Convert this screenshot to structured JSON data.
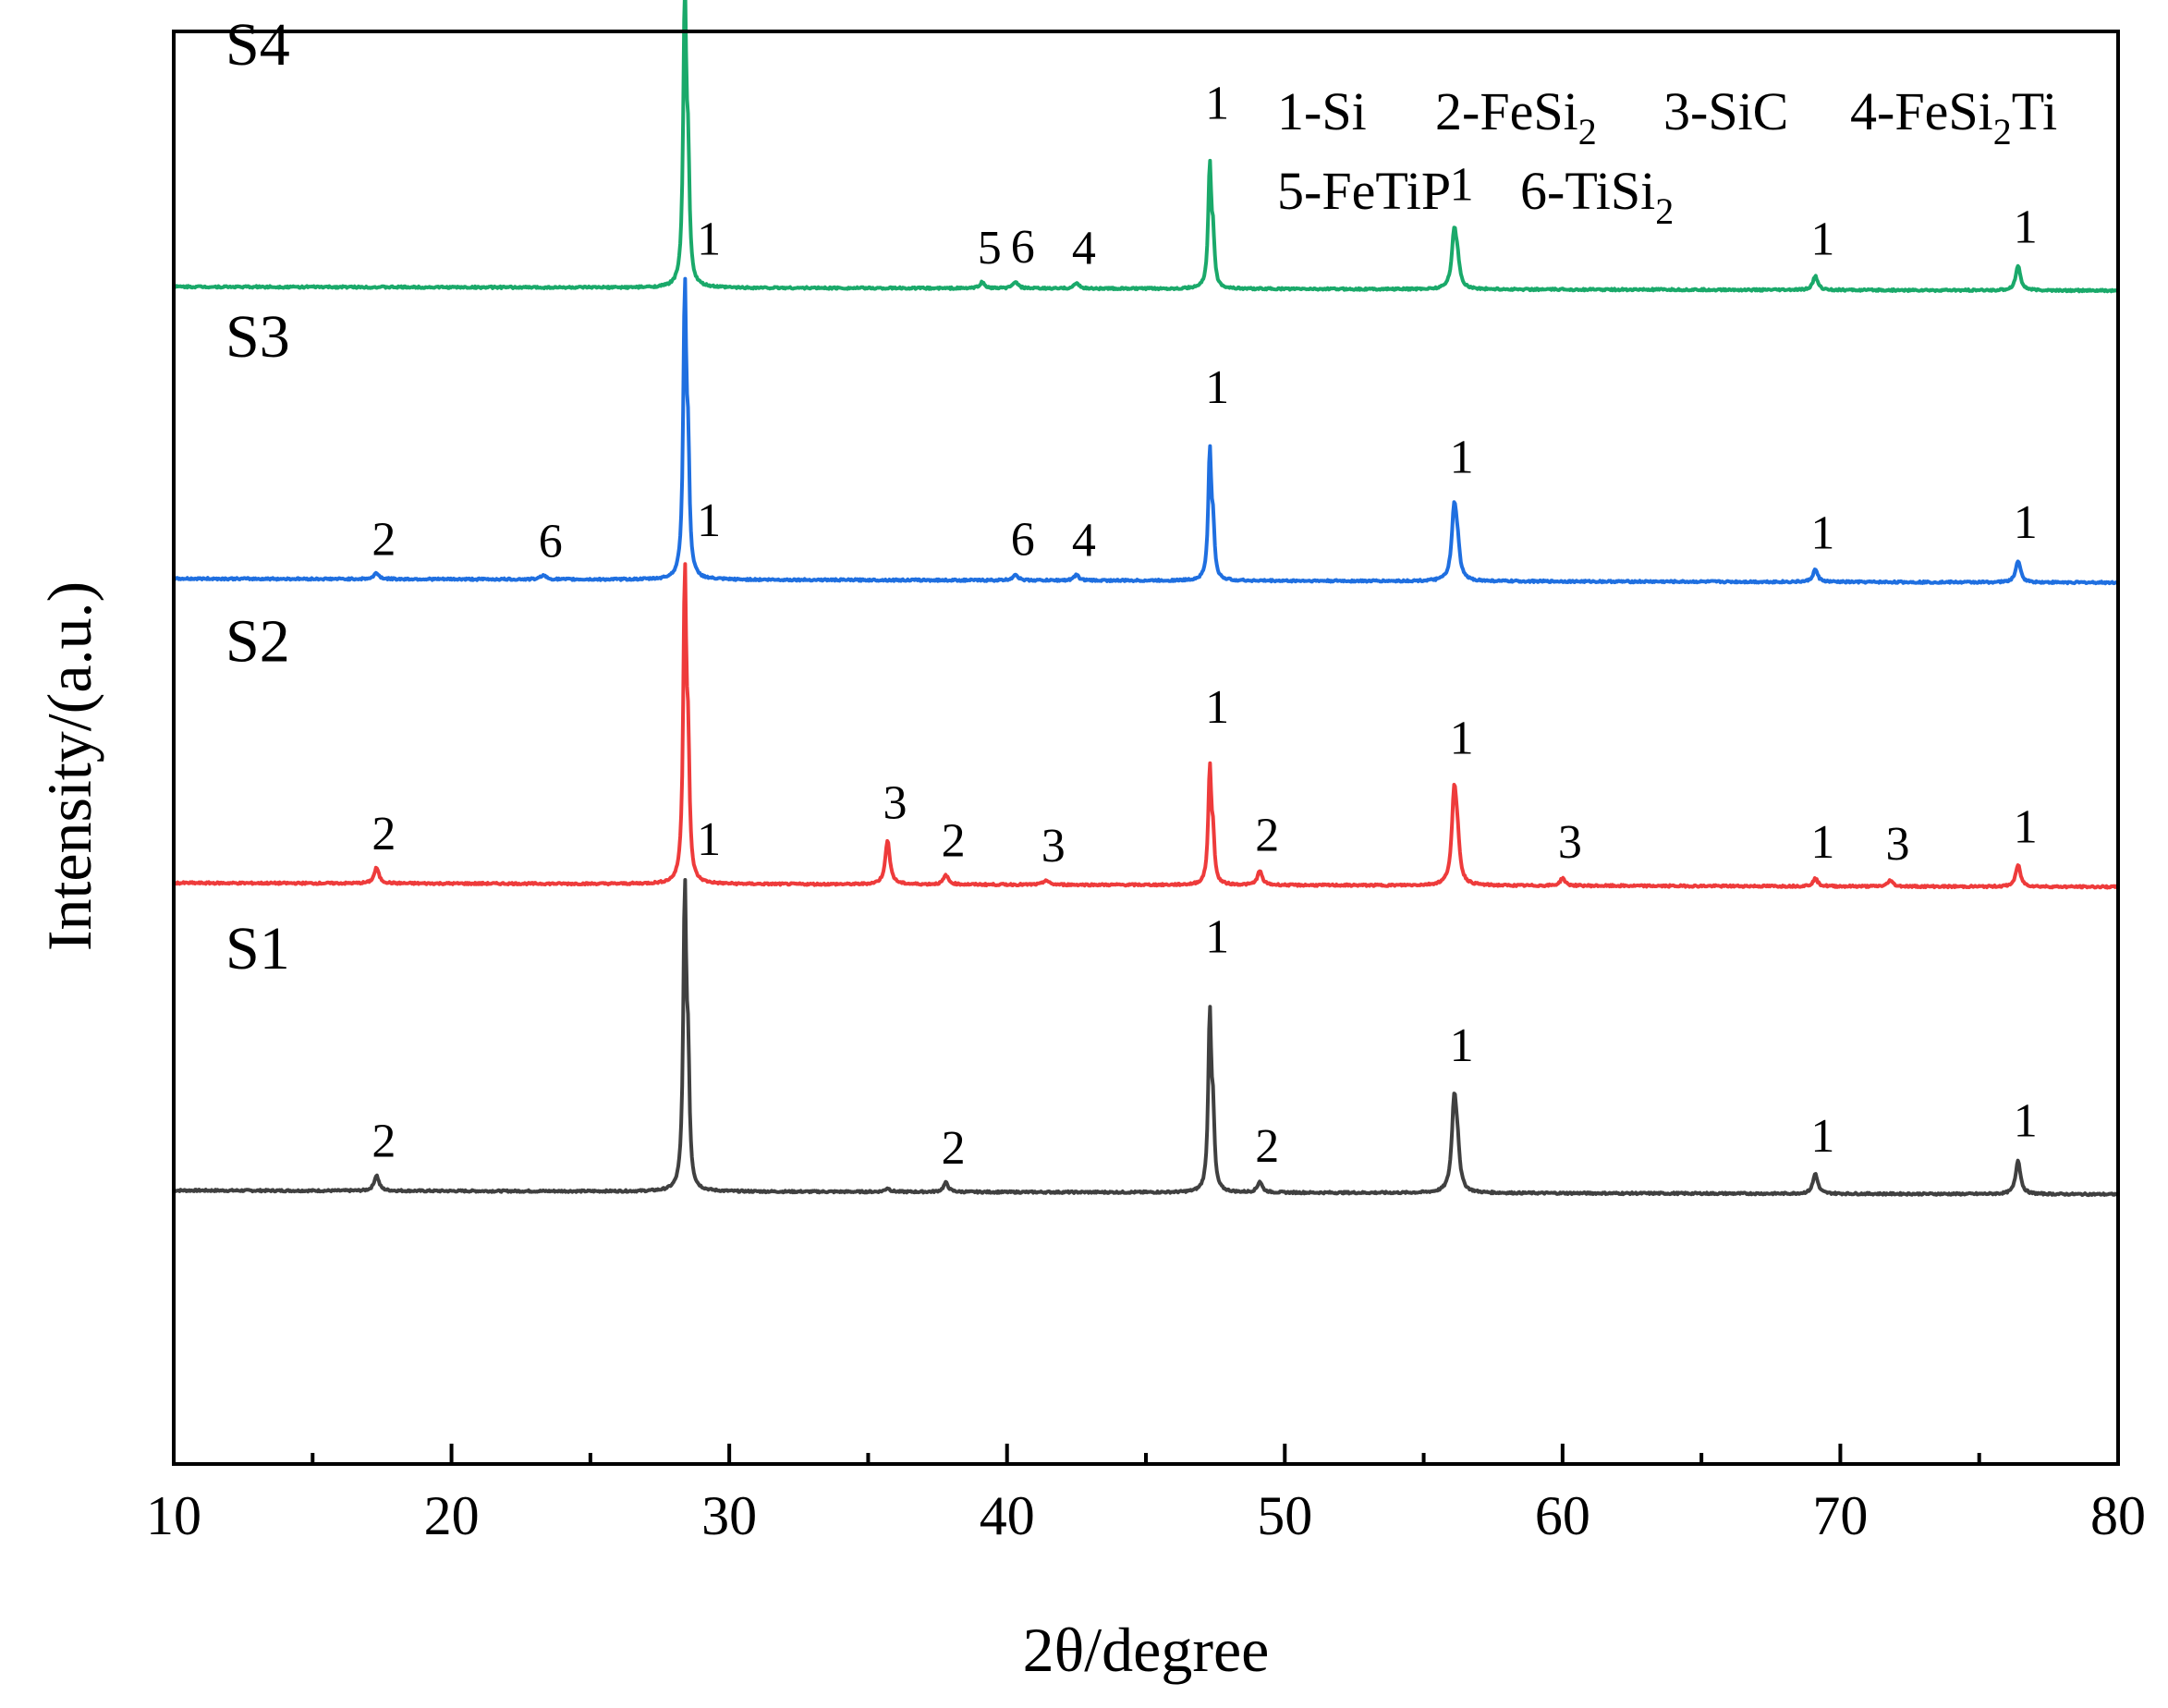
{
  "chart_data": {
    "type": "line",
    "xlabel": "2θ/degree",
    "ylabel": "Intensity/(a.u.)",
    "xlim": [
      10,
      80
    ],
    "xticks": [
      10,
      20,
      30,
      40,
      50,
      60,
      70,
      80
    ],
    "grid": false,
    "legend": {
      "placement": "top-right",
      "entries": [
        {
          "num": "1",
          "base": "Si",
          "sub": "",
          "tail": ""
        },
        {
          "num": "2",
          "base": "FeSi",
          "sub": "2",
          "tail": ""
        },
        {
          "num": "3",
          "base": "SiC",
          "sub": "",
          "tail": ""
        },
        {
          "num": "4",
          "base": "FeSi",
          "sub": "2",
          "tail": "Ti"
        },
        {
          "num": "5",
          "base": "FeTiP",
          "sub": "",
          "tail": ""
        },
        {
          "num": "6",
          "base": "TiSi",
          "sub": "2",
          "tail": ""
        }
      ]
    },
    "series": [
      {
        "name": "S1",
        "color": "#404040",
        "offset": 0.5,
        "peaks": [
          {
            "x": 17.3,
            "h": 0.05,
            "label": "2"
          },
          {
            "x": 28.4,
            "h": 0.95,
            "label": "1"
          },
          {
            "x": 35.7,
            "h": 0.012,
            "label": ""
          },
          {
            "x": 37.8,
            "h": 0.03,
            "label": "2"
          },
          {
            "x": 47.3,
            "h": 0.57,
            "label": "1"
          },
          {
            "x": 49.1,
            "h": 0.035,
            "label": "2"
          },
          {
            "x": 56.1,
            "h": 0.29,
            "label": "1"
          },
          {
            "x": 69.1,
            "h": 0.065,
            "label": "1"
          },
          {
            "x": 76.4,
            "h": 0.11,
            "label": "1"
          }
        ]
      },
      {
        "name": "S2",
        "color": "#ee3b3b",
        "offset": 1.49,
        "peaks": [
          {
            "x": 17.3,
            "h": 0.05,
            "label": "2"
          },
          {
            "x": 28.4,
            "h": 0.98,
            "label": "1"
          },
          {
            "x": 35.7,
            "h": 0.14,
            "label": "3"
          },
          {
            "x": 37.8,
            "h": 0.03,
            "label": "2"
          },
          {
            "x": 41.4,
            "h": 0.015,
            "label": "3"
          },
          {
            "x": 47.3,
            "h": 0.37,
            "label": "1"
          },
          {
            "x": 49.1,
            "h": 0.045,
            "label": "2"
          },
          {
            "x": 56.1,
            "h": 0.29,
            "label": "1"
          },
          {
            "x": 60.0,
            "h": 0.025,
            "label": "3"
          },
          {
            "x": 69.1,
            "h": 0.025,
            "label": "1"
          },
          {
            "x": 71.8,
            "h": 0.02,
            "label": "3"
          },
          {
            "x": 76.4,
            "h": 0.07,
            "label": "1"
          }
        ]
      },
      {
        "name": "S3",
        "color": "#1f6fe0",
        "offset": 2.47,
        "peaks": [
          {
            "x": 17.3,
            "h": 0.02,
            "label": "2"
          },
          {
            "x": 23.3,
            "h": 0.015,
            "label": "6"
          },
          {
            "x": 28.4,
            "h": 0.92,
            "label": "1"
          },
          {
            "x": 40.3,
            "h": 0.02,
            "label": "6"
          },
          {
            "x": 42.5,
            "h": 0.018,
            "label": "4"
          },
          {
            "x": 47.3,
            "h": 0.41,
            "label": "1"
          },
          {
            "x": 56.1,
            "h": 0.23,
            "label": "1"
          },
          {
            "x": 69.1,
            "h": 0.04,
            "label": "1"
          },
          {
            "x": 76.4,
            "h": 0.07,
            "label": "1"
          }
        ]
      },
      {
        "name": "S4",
        "color": "#1aa96a",
        "offset": 3.41,
        "peaks": [
          {
            "x": 28.4,
            "h": 0.93,
            "label": "1"
          },
          {
            "x": 39.1,
            "h": 0.02,
            "label": "5"
          },
          {
            "x": 40.3,
            "h": 0.022,
            "label": "6"
          },
          {
            "x": 42.5,
            "h": 0.018,
            "label": "4"
          },
          {
            "x": 47.3,
            "h": 0.39,
            "label": "1"
          },
          {
            "x": 56.1,
            "h": 0.18,
            "label": "1"
          },
          {
            "x": 69.1,
            "h": 0.045,
            "label": "1"
          },
          {
            "x": 76.4,
            "h": 0.08,
            "label": "1"
          }
        ]
      }
    ]
  }
}
